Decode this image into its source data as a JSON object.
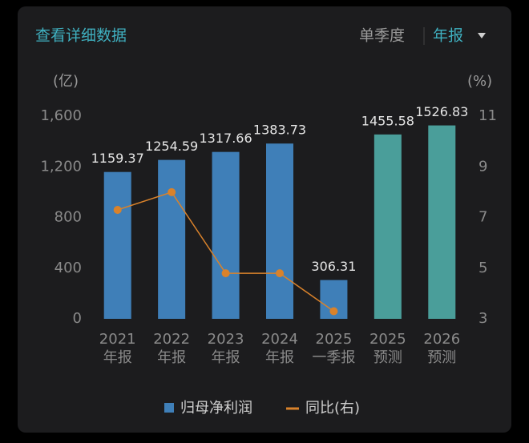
{
  "header": {
    "title": "查看详细数据",
    "toggle": [
      "单季度",
      "年报"
    ]
  },
  "chart_data": {
    "type": "bar-line",
    "y_unit": "(亿)",
    "y2_unit": "(%)",
    "categories": [
      [
        "2021",
        "年报"
      ],
      [
        "2022",
        "年报"
      ],
      [
        "2023",
        "年报"
      ],
      [
        "2024",
        "年报"
      ],
      [
        "2025",
        "一季报"
      ],
      [
        "2025",
        "预测"
      ],
      [
        "2026",
        "预测"
      ]
    ],
    "series": [
      {
        "name": "归母净利润",
        "color": "#3f7fb8",
        "colors": [
          "#3f7fb8",
          "#3f7fb8",
          "#3f7fb8",
          "#3f7fb8",
          "#3f7fb8",
          "#4a9e9a",
          "#4a9e9a"
        ],
        "values": [
          1159.37,
          1254.59,
          1317.66,
          1383.73,
          306.31,
          1455.58,
          1526.83
        ]
      },
      {
        "name": "同比(右)",
        "color": "#d9822b",
        "axis": "y2",
        "values": [
          7.3,
          8.0,
          4.8,
          4.8,
          3.3,
          null,
          null
        ]
      }
    ],
    "ylim": [
      0,
      1600
    ],
    "yticks": [
      0,
      400,
      800,
      {
        "value": 1200,
        "label": "1,200"
      },
      {
        "value": 1600,
        "label": "1,600"
      }
    ],
    "y2lim": [
      3,
      11
    ],
    "y2ticks": [
      3,
      5,
      7,
      9,
      11
    ]
  }
}
